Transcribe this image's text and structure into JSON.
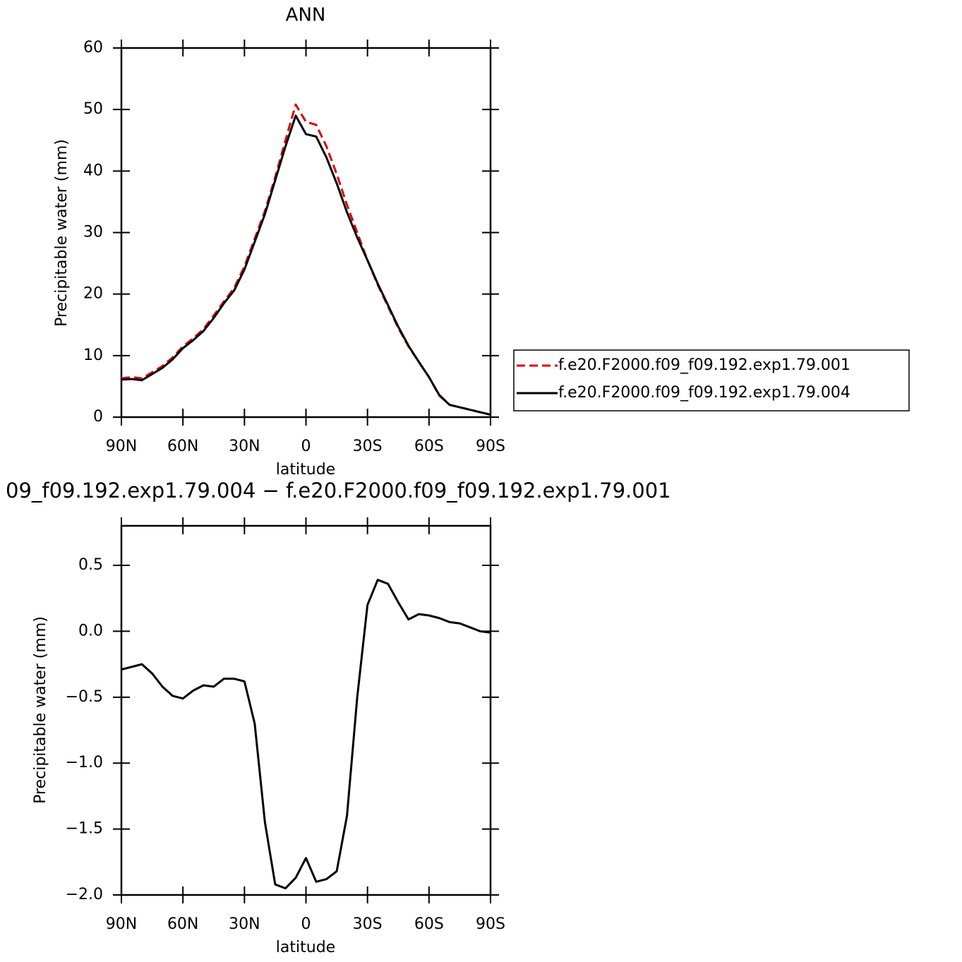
{
  "chart_data": [
    {
      "type": "line",
      "title": "ANN",
      "xlabel": "latitude",
      "ylabel": "Precipitable water (mm)",
      "x": [
        90,
        85,
        80,
        75,
        70,
        65,
        60,
        55,
        50,
        45,
        40,
        35,
        30,
        25,
        20,
        15,
        10,
        5,
        0,
        -5,
        -10,
        -15,
        -20,
        -25,
        -30,
        -35,
        -40,
        -45,
        -50,
        -55,
        -60,
        -65,
        -70,
        -75,
        -80,
        -85,
        -90
      ],
      "xlim": [
        90,
        -90
      ],
      "xticks": [
        {
          "value": 90,
          "label": "90N"
        },
        {
          "value": 60,
          "label": "60N"
        },
        {
          "value": 30,
          "label": "30N"
        },
        0,
        {
          "value": -30,
          "label": "30S"
        },
        {
          "value": -60,
          "label": "60S"
        },
        {
          "value": -90,
          "label": "90S"
        }
      ],
      "ylim": [
        0,
        60
      ],
      "yticks": [
        0,
        10,
        20,
        30,
        40,
        50,
        60
      ],
      "legend": "right",
      "series": [
        {
          "name": "f.e20.F2000.f09_f09.192.exp1.79.001",
          "color": "#e00000",
          "style": "dashed",
          "values": [
            6.3,
            6.5,
            6.3,
            7.3,
            8.3,
            9.7,
            11.5,
            12.8,
            14.3,
            16.5,
            18.8,
            21,
            24.5,
            29,
            33.5,
            39,
            45,
            50.8,
            48,
            47.5,
            44,
            39.5,
            34.5,
            30,
            25.5,
            21.5,
            18,
            14.5,
            11.5,
            9,
            6.5,
            3.5,
            2,
            1.6,
            1.2,
            0.8,
            0.4
          ]
        },
        {
          "name": "f.e20.F2000.f09_f09.192.exp1.79.004",
          "color": "#000000",
          "style": "solid",
          "values": [
            6.1,
            6.2,
            6.0,
            7.0,
            8.0,
            9.4,
            11.2,
            12.5,
            14,
            16.1,
            18.5,
            20.6,
            24,
            28.5,
            33,
            38.5,
            44,
            49,
            46,
            45.6,
            42.2,
            38,
            33.3,
            29.2,
            25.5,
            21.7,
            18.2,
            14.7,
            11.6,
            9,
            6.5,
            3.6,
            2.0,
            1.6,
            1.2,
            0.8,
            0.4
          ]
        }
      ]
    },
    {
      "type": "line",
      "title": "09_f09.192.exp1.79.004 − f.e20.F2000.f09_f09.192.exp1.79.001",
      "xlabel": "latitude",
      "ylabel": "Precipitable water (mm)",
      "x": [
        90,
        85,
        80,
        75,
        70,
        65,
        60,
        55,
        50,
        45,
        40,
        35,
        30,
        25,
        20,
        15,
        10,
        5,
        0,
        -5,
        -10,
        -15,
        -20,
        -25,
        -30,
        -35,
        -40,
        -45,
        -50,
        -55,
        -60,
        -65,
        -70,
        -75,
        -80,
        -85,
        -90
      ],
      "xlim": [
        90,
        -90
      ],
      "xticks": [
        {
          "value": 90,
          "label": "90N"
        },
        {
          "value": 60,
          "label": "60N"
        },
        {
          "value": 30,
          "label": "30N"
        },
        0,
        {
          "value": -30,
          "label": "30S"
        },
        {
          "value": -60,
          "label": "60S"
        },
        {
          "value": -90,
          "label": "90S"
        }
      ],
      "ylim": [
        -2,
        0.8
      ],
      "yticks": [
        {
          "value": -2,
          "label": "−2.0"
        },
        {
          "value": -1.5,
          "label": "−1.5"
        },
        {
          "value": -1,
          "label": "−1.0"
        },
        {
          "value": -0.5,
          "label": "−0.5"
        },
        {
          "value": 0,
          "label": "0.0"
        },
        0.5
      ],
      "series": [
        {
          "color": "#000000",
          "style": "solid",
          "values": [
            -0.29,
            -0.27,
            -0.25,
            -0.32,
            -0.42,
            -0.49,
            -0.51,
            -0.45,
            -0.41,
            -0.42,
            -0.36,
            -0.36,
            -0.38,
            -0.7,
            -1.45,
            -1.92,
            -1.95,
            -1.87,
            -1.72,
            -1.9,
            -1.88,
            -1.82,
            -1.4,
            -0.5,
            0.2,
            0.39,
            0.36,
            0.22,
            0.09,
            0.13,
            0.12,
            0.1,
            0.07,
            0.06,
            0.03,
            0.0,
            -0.01
          ]
        }
      ]
    }
  ]
}
